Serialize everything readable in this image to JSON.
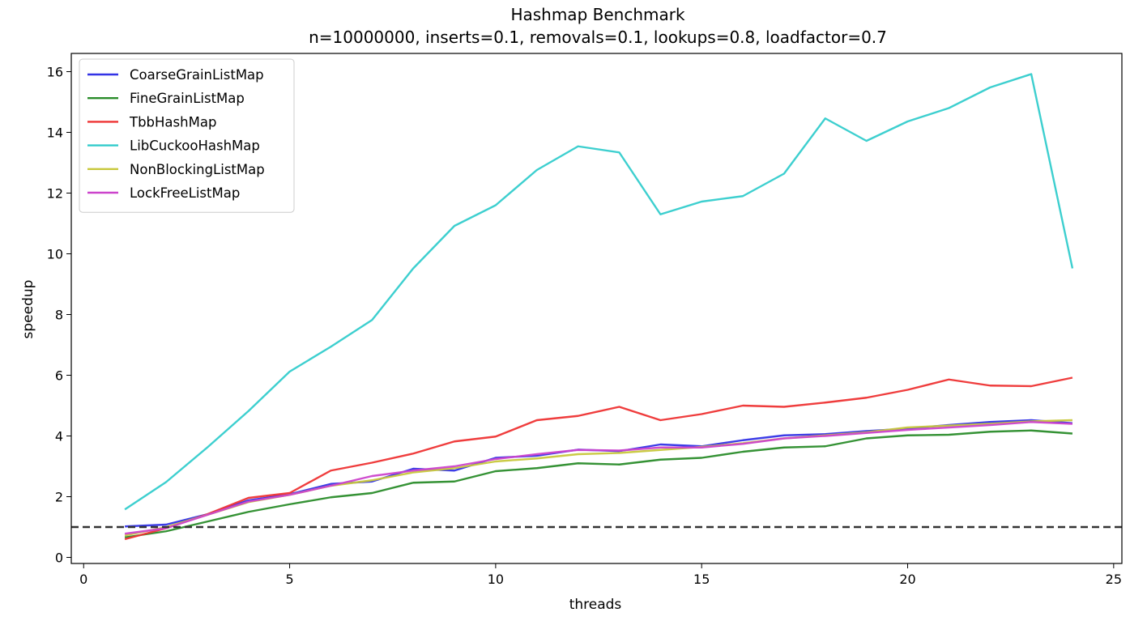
{
  "chart_data": {
    "type": "line",
    "title": "Hashmap Benchmark",
    "subtitle": "n=10000000, inserts=0.1, removals=0.1, lookups=0.8, loadfactor=0.7",
    "xlabel": "threads",
    "ylabel": "speedup",
    "xlim": [
      -0.3,
      25.2
    ],
    "ylim": [
      -0.2,
      16.6
    ],
    "xticks": [
      0,
      5,
      10,
      15,
      20,
      25
    ],
    "yticks": [
      0,
      2,
      4,
      6,
      8,
      10,
      12,
      14,
      16
    ],
    "grid": false,
    "legend_position": "top-left",
    "reference_line": {
      "y": 1.0,
      "style": "dashed",
      "color": "#333333"
    },
    "x": [
      1,
      2,
      3,
      4,
      5,
      6,
      7,
      8,
      9,
      10,
      11,
      12,
      13,
      14,
      15,
      16,
      17,
      18,
      19,
      20,
      21,
      22,
      23,
      24
    ],
    "series": [
      {
        "name": "CoarseGrainListMap",
        "color": "#3333e6",
        "values": [
          1.02,
          1.08,
          1.42,
          1.88,
          2.08,
          2.42,
          2.5,
          2.92,
          2.86,
          3.28,
          3.35,
          3.55,
          3.5,
          3.72,
          3.66,
          3.86,
          4.02,
          4.06,
          4.16,
          4.24,
          4.36,
          4.46,
          4.52,
          4.42
        ]
      },
      {
        "name": "FineGrainListMap",
        "color": "#2a8c2a",
        "values": [
          0.66,
          0.86,
          1.18,
          1.5,
          1.75,
          1.98,
          2.12,
          2.46,
          2.5,
          2.84,
          2.94,
          3.1,
          3.06,
          3.22,
          3.28,
          3.48,
          3.62,
          3.66,
          3.92,
          4.02,
          4.04,
          4.14,
          4.18,
          4.08
        ]
      },
      {
        "name": "TbbHashMap",
        "color": "#ee3333",
        "values": [
          0.6,
          0.96,
          1.42,
          1.96,
          2.12,
          2.86,
          3.12,
          3.42,
          3.82,
          3.98,
          4.52,
          4.66,
          4.96,
          4.52,
          4.72,
          5.0,
          4.96,
          5.1,
          5.26,
          5.52,
          5.86,
          5.66,
          5.64,
          5.92
        ]
      },
      {
        "name": "LibCuckooHashMap",
        "color": "#33cccc",
        "values": [
          1.58,
          2.48,
          3.62,
          4.82,
          6.12,
          6.94,
          7.82,
          9.52,
          10.92,
          11.6,
          12.76,
          13.54,
          13.34,
          11.3,
          11.72,
          11.9,
          12.64,
          14.46,
          13.72,
          14.36,
          14.8,
          15.48,
          15.92,
          9.52
        ]
      },
      {
        "name": "NonBlockingListMap",
        "color": "#c8c83c",
        "values": [
          0.72,
          1.0,
          1.4,
          1.82,
          2.06,
          2.36,
          2.54,
          2.8,
          2.94,
          3.16,
          3.26,
          3.4,
          3.44,
          3.54,
          3.64,
          3.76,
          3.92,
          4.02,
          4.12,
          4.28,
          4.34,
          4.4,
          4.48,
          4.52
        ]
      },
      {
        "name": "LockFreeListMap",
        "color": "#cc44cc",
        "values": [
          0.78,
          0.96,
          1.4,
          1.84,
          2.06,
          2.36,
          2.68,
          2.86,
          3.0,
          3.24,
          3.4,
          3.54,
          3.52,
          3.62,
          3.62,
          3.74,
          3.92,
          4.0,
          4.1,
          4.2,
          4.28,
          4.36,
          4.46,
          4.4
        ]
      }
    ]
  }
}
